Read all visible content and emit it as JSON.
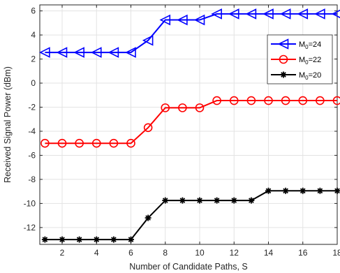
{
  "chart_data": {
    "type": "line",
    "title": "",
    "xlabel": "Number of Candidate Paths, S",
    "ylabel": "Received Signal Power (dBm)",
    "xlim": [
      0.7,
      18
    ],
    "ylim": [
      -13.4,
      6.5
    ],
    "xticks": [
      2,
      4,
      6,
      8,
      10,
      12,
      14,
      16,
      18
    ],
    "yticks": [
      -12,
      -10,
      -8,
      -6,
      -4,
      -2,
      0,
      2,
      4,
      6
    ],
    "grid": true,
    "legend_position": "top-right",
    "x": [
      1,
      2,
      3,
      4,
      5,
      6,
      7,
      8,
      9,
      10,
      11,
      12,
      13,
      14,
      15,
      16,
      17,
      18
    ],
    "series": [
      {
        "name_base": "M",
        "name_sub": "0",
        "name_rest": "=24",
        "color": "#0000ff",
        "marker": "triangle-left",
        "values": [
          2.55,
          2.55,
          2.55,
          2.55,
          2.55,
          2.55,
          3.55,
          5.25,
          5.25,
          5.25,
          5.75,
          5.75,
          5.75,
          5.75,
          5.75,
          5.75,
          5.75,
          5.75
        ]
      },
      {
        "name_base": "M",
        "name_sub": "0",
        "name_rest": "=22",
        "color": "#ff0000",
        "marker": "circle",
        "values": [
          -5.0,
          -5.0,
          -5.0,
          -5.0,
          -5.0,
          -5.0,
          -3.7,
          -2.05,
          -2.05,
          -2.05,
          -1.45,
          -1.45,
          -1.45,
          -1.45,
          -1.45,
          -1.45,
          -1.45,
          -1.45
        ]
      },
      {
        "name_base": "M",
        "name_sub": "0",
        "name_rest": "=20",
        "color": "#000000",
        "marker": "asterisk",
        "values": [
          -13.0,
          -13.0,
          -13.0,
          -13.0,
          -13.0,
          -13.0,
          -11.2,
          -9.75,
          -9.75,
          -9.75,
          -9.75,
          -9.75,
          -9.75,
          -8.95,
          -8.95,
          -8.95,
          -8.95,
          -8.95
        ]
      }
    ]
  }
}
